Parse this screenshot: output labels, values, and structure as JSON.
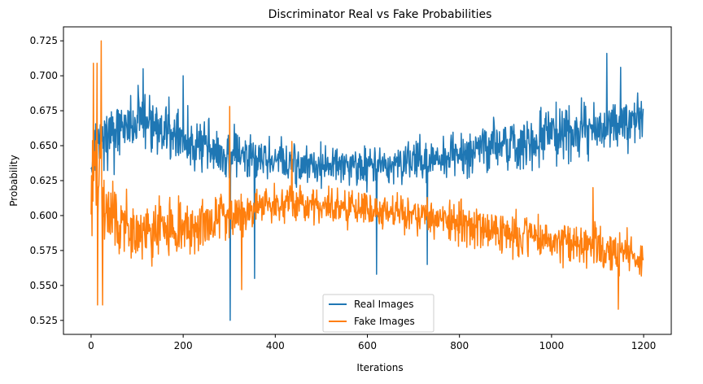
{
  "chart_data": {
    "type": "line",
    "title": "Discriminator Real vs Fake Probabilities",
    "xlabel": "Iterations",
    "ylabel": "Probability",
    "xlim": [
      -60,
      1260
    ],
    "ylim": [
      0.515,
      0.735
    ],
    "xticks": [
      0,
      200,
      400,
      600,
      800,
      1000,
      1200
    ],
    "yticks": [
      0.525,
      0.55,
      0.575,
      0.6,
      0.625,
      0.65,
      0.675,
      0.7,
      0.725
    ],
    "grid": false,
    "legend": {
      "placement": "lower-center"
    },
    "series": [
      {
        "name": "Real Images",
        "color": "#1f77b4",
        "x": [
          0,
          5,
          10,
          20,
          40,
          60,
          80,
          100,
          120,
          150,
          180,
          200,
          250,
          300,
          302,
          350,
          400,
          450,
          500,
          550,
          610,
          650,
          700,
          750,
          800,
          850,
          900,
          950,
          1000,
          1050,
          1100,
          1120,
          1150,
          1180,
          1199
        ],
        "mean": [
          0.62,
          0.64,
          0.65,
          0.655,
          0.66,
          0.662,
          0.665,
          0.667,
          0.668,
          0.662,
          0.658,
          0.655,
          0.648,
          0.646,
          0.646,
          0.644,
          0.641,
          0.638,
          0.636,
          0.635,
          0.634,
          0.636,
          0.638,
          0.641,
          0.645,
          0.648,
          0.651,
          0.654,
          0.657,
          0.66,
          0.663,
          0.665,
          0.666,
          0.667,
          0.666
        ],
        "spread": [
          0.025,
          0.03,
          0.034,
          0.036,
          0.036,
          0.034,
          0.032,
          0.032,
          0.032,
          0.032,
          0.031,
          0.03,
          0.028,
          0.027,
          0.027,
          0.025,
          0.023,
          0.021,
          0.02,
          0.02,
          0.02,
          0.021,
          0.022,
          0.023,
          0.025,
          0.026,
          0.027,
          0.028,
          0.028,
          0.028,
          0.028,
          0.028,
          0.028,
          0.027,
          0.025
        ],
        "spikes": [
          [
            302,
            0.525
          ],
          [
            355,
            0.555
          ],
          [
            620,
            0.558
          ],
          [
            113,
            0.705
          ],
          [
            1120,
            0.716
          ],
          [
            200,
            0.7
          ],
          [
            730,
            0.565
          ],
          [
            1150,
            0.706
          ]
        ]
      },
      {
        "name": "Fake Images",
        "color": "#ff7f0e",
        "x": [
          0,
          5,
          10,
          20,
          30,
          40,
          60,
          80,
          100,
          120,
          150,
          200,
          250,
          300,
          350,
          400,
          430,
          450,
          500,
          550,
          600,
          650,
          700,
          750,
          800,
          850,
          900,
          950,
          1000,
          1050,
          1100,
          1150,
          1199
        ],
        "mean": [
          0.625,
          0.64,
          0.63,
          0.615,
          0.6,
          0.598,
          0.593,
          0.59,
          0.588,
          0.588,
          0.59,
          0.592,
          0.596,
          0.6,
          0.604,
          0.607,
          0.61,
          0.609,
          0.607,
          0.606,
          0.605,
          0.603,
          0.6,
          0.598,
          0.595,
          0.592,
          0.588,
          0.585,
          0.582,
          0.58,
          0.578,
          0.575,
          0.567
        ],
        "spread": [
          0.05,
          0.05,
          0.05,
          0.05,
          0.045,
          0.038,
          0.034,
          0.032,
          0.031,
          0.03,
          0.029,
          0.027,
          0.026,
          0.025,
          0.023,
          0.021,
          0.02,
          0.019,
          0.018,
          0.018,
          0.018,
          0.019,
          0.019,
          0.02,
          0.021,
          0.022,
          0.022,
          0.022,
          0.022,
          0.022,
          0.022,
          0.021,
          0.02
        ],
        "spikes": [
          [
            22,
            0.725
          ],
          [
            5,
            0.709
          ],
          [
            13,
            0.709
          ],
          [
            14,
            0.536
          ],
          [
            25,
            0.536
          ],
          [
            301,
            0.678
          ],
          [
            327,
            0.547
          ],
          [
            436,
            0.653
          ],
          [
            1090,
            0.62
          ],
          [
            1145,
            0.533
          ]
        ]
      }
    ]
  }
}
